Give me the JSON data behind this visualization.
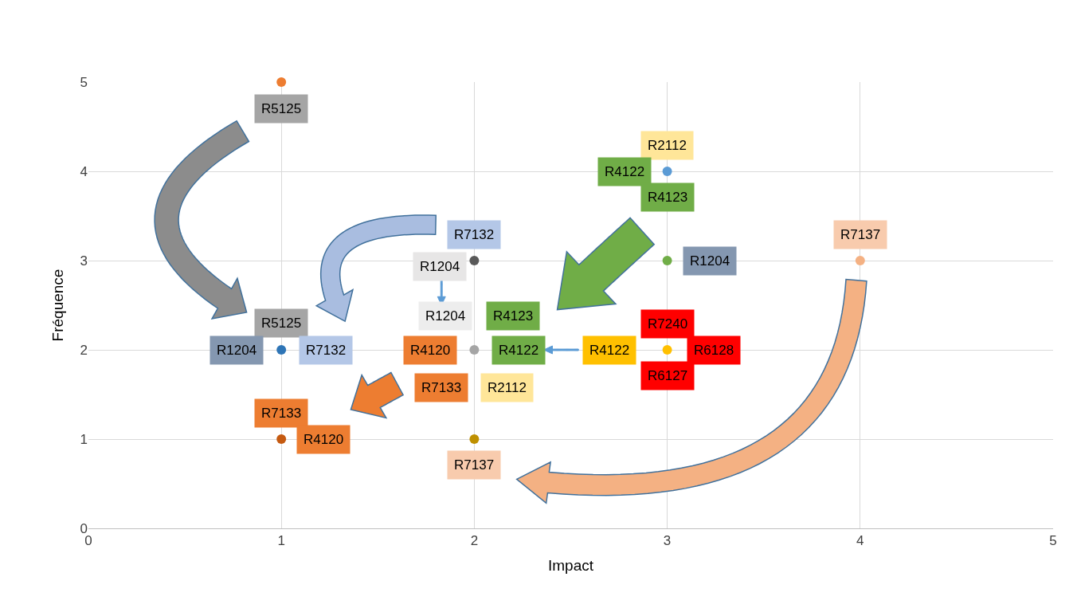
{
  "chart_data": {
    "type": "scatter",
    "xlabel": "Impact",
    "ylabel": "Fréquence",
    "x": [
      1,
      3,
      2,
      3,
      4,
      1,
      2,
      3,
      1,
      2
    ],
    "values": [
      5,
      4,
      3,
      3,
      3,
      2,
      2,
      2,
      1,
      1
    ],
    "colors": [
      "#ed7d31",
      "#5b9bd5",
      "#595959",
      "#70ad47",
      "#f4b183",
      "#2e75b6",
      "#a5a5a5",
      "#ffc000",
      "#c55a11",
      "#bf9000"
    ],
    "marker": "circle",
    "grid": true,
    "xlim": [
      0,
      5
    ],
    "ylim": [
      0,
      5
    ],
    "xticks": [
      0,
      1,
      2,
      3,
      4,
      5
    ],
    "yticks": [
      0,
      1,
      2,
      3,
      4,
      5
    ],
    "annotations": [
      "R5125",
      "R2112",
      "R4122",
      "R4123",
      "R7132",
      "R7137",
      "R1204",
      "R1204",
      "R1204",
      "R4123",
      "R5125",
      "R7240",
      "R1204",
      "R7132",
      "R4120",
      "R4122",
      "R4122",
      "R6128",
      "R6127",
      "R7133",
      "R2112",
      "R7133",
      "R4120",
      "R7137"
    ]
  }
}
